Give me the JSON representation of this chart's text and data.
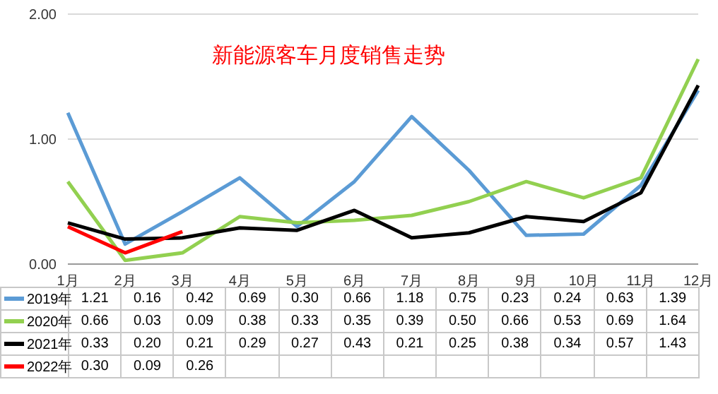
{
  "chart_data": {
    "type": "line",
    "title": "新能源客车月度销售走势",
    "categories": [
      "1月",
      "2月",
      "3月",
      "4月",
      "5月",
      "6月",
      "7月",
      "8月",
      "9月",
      "10月",
      "11月",
      "12月"
    ],
    "series": [
      {
        "name": "2019年",
        "color": "#5b9bd5",
        "values": [
          1.21,
          0.16,
          0.42,
          0.69,
          0.3,
          0.66,
          1.18,
          0.75,
          0.23,
          0.24,
          0.63,
          1.39
        ],
        "value_labels": [
          "1.21",
          "0.16",
          "0.42",
          "0.69",
          "0.30",
          "0.66",
          "1.18",
          "0.75",
          "0.23",
          "0.24",
          "0.63",
          "1.39"
        ]
      },
      {
        "name": "2020年",
        "color": "#92d050",
        "values": [
          0.66,
          0.03,
          0.09,
          0.38,
          0.33,
          0.35,
          0.39,
          0.5,
          0.66,
          0.53,
          0.69,
          1.64
        ],
        "value_labels": [
          "0.66",
          "0.03",
          "0.09",
          "0.38",
          "0.33",
          "0.35",
          "0.39",
          "0.50",
          "0.66",
          "0.53",
          "0.69",
          "1.64"
        ]
      },
      {
        "name": "2021年",
        "color": "#000000",
        "values": [
          0.33,
          0.2,
          0.21,
          0.29,
          0.27,
          0.43,
          0.21,
          0.25,
          0.38,
          0.34,
          0.57,
          1.43
        ],
        "value_labels": [
          "0.33",
          "0.20",
          "0.21",
          "0.29",
          "0.27",
          "0.43",
          "0.21",
          "0.25",
          "0.38",
          "0.34",
          "0.57",
          "1.43"
        ]
      },
      {
        "name": "2022年",
        "color": "#ff0000",
        "values": [
          0.3,
          0.09,
          0.26,
          null,
          null,
          null,
          null,
          null,
          null,
          null,
          null,
          null
        ],
        "value_labels": [
          "0.30",
          "0.09",
          "0.26",
          null,
          null,
          null,
          null,
          null,
          null,
          null,
          null,
          null
        ]
      }
    ],
    "ylim": [
      0,
      2
    ],
    "yticks": [
      {
        "value": 0,
        "label": "0.00"
      },
      {
        "value": 1,
        "label": "1.00"
      },
      {
        "value": 2,
        "label": "2.00"
      }
    ],
    "grid": "y",
    "legend": "bottom",
    "marker": "none",
    "line_style": "solid"
  }
}
